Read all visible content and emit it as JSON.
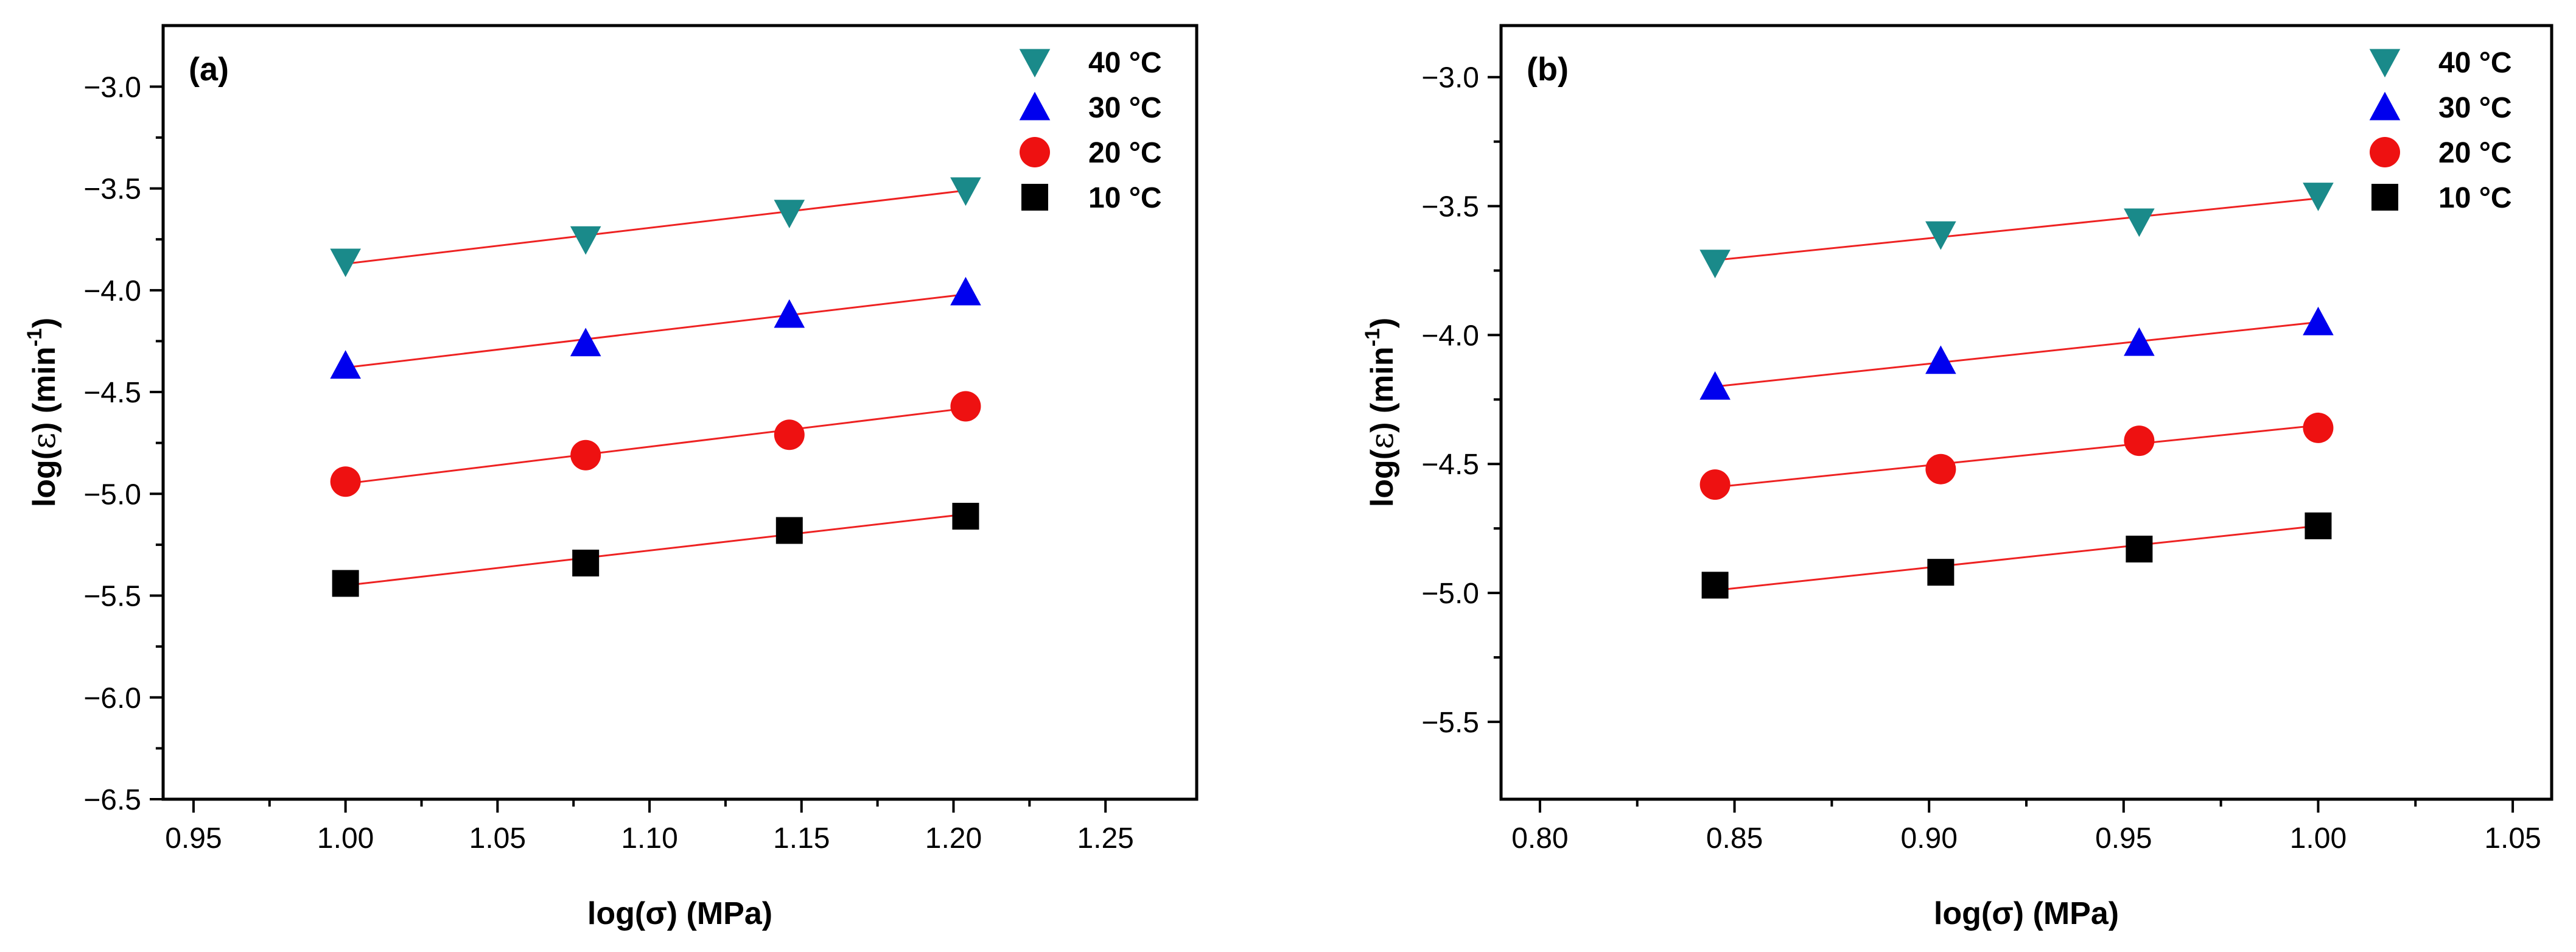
{
  "chart_data": [
    {
      "type": "scatter",
      "panel_label": "(a)",
      "xlabel": "log(σ) (MPa)",
      "ylabel_main": "log(",
      "ylabel_symbol": "ε",
      "ylabel_end": ")  (min",
      "ylabel_sup": "-1",
      "ylabel_close": ")",
      "xlim": [
        0.94,
        1.28
      ],
      "ylim": [
        -6.5,
        -2.7
      ],
      "xticks": [
        0.95,
        1.0,
        1.05,
        1.1,
        1.15,
        1.2,
        1.25
      ],
      "xtick_labels": [
        "0.95",
        "1.00",
        "1.05",
        "1.10",
        "1.15",
        "1.20",
        "1.25"
      ],
      "yticks": [
        -6.5,
        -6.0,
        -5.5,
        -5.0,
        -4.5,
        -4.0,
        -3.5,
        -3.0
      ],
      "ytick_labels": [
        "−6.5",
        "−6.0",
        "−5.5",
        "−5.0",
        "−4.5",
        "−4.0",
        "−3.5",
        "−3.0"
      ],
      "legend_position": "top-right",
      "series": [
        {
          "name": "40 °C",
          "marker": "triangle-down",
          "color": "#1a8a8a",
          "x": [
            1.0,
            1.079,
            1.146,
            1.204
          ],
          "y": [
            -3.86,
            -3.75,
            -3.62,
            -3.51
          ],
          "fit": {
            "x": [
              1.0,
              1.204
            ],
            "y": [
              -3.87,
              -3.51
            ]
          }
        },
        {
          "name": "30 °C",
          "marker": "triangle-up",
          "color": "#0000ee",
          "x": [
            1.0,
            1.079,
            1.146,
            1.204
          ],
          "y": [
            -4.37,
            -4.26,
            -4.12,
            -4.01
          ],
          "fit": {
            "x": [
              1.0,
              1.204
            ],
            "y": [
              -4.38,
              -4.02
            ]
          }
        },
        {
          "name": "20 °C",
          "marker": "circle",
          "color": "#ee1111",
          "x": [
            1.0,
            1.079,
            1.146,
            1.204
          ],
          "y": [
            -4.94,
            -4.81,
            -4.71,
            -4.57
          ],
          "fit": {
            "x": [
              1.0,
              1.204
            ],
            "y": [
              -4.95,
              -4.58
            ]
          }
        },
        {
          "name": "10 °C",
          "marker": "square",
          "color": "#000000",
          "x": [
            1.0,
            1.079,
            1.146,
            1.204
          ],
          "y": [
            -5.44,
            -5.34,
            -5.18,
            -5.11
          ],
          "fit": {
            "x": [
              1.0,
              1.204
            ],
            "y": [
              -5.45,
              -5.1
            ]
          }
        }
      ]
    },
    {
      "type": "scatter",
      "panel_label": "(b)",
      "xlabel": "log(σ) (MPa)",
      "ylabel_main": "log(",
      "ylabel_symbol": "ε",
      "ylabel_end": ")  (min",
      "ylabel_sup": "-1",
      "ylabel_close": ")",
      "xlim": [
        0.79,
        1.06
      ],
      "ylim": [
        -5.8,
        -2.8
      ],
      "xticks": [
        0.8,
        0.85,
        0.9,
        0.95,
        1.0,
        1.05
      ],
      "xtick_labels": [
        "0.80",
        "0.85",
        "0.90",
        "0.95",
        "1.00",
        "1.05"
      ],
      "yticks": [
        -5.5,
        -5.0,
        -4.5,
        -4.0,
        -3.5,
        -3.0
      ],
      "ytick_labels": [
        "−5.5",
        "−5.0",
        "−4.5",
        "−4.0",
        "−3.5",
        "−3.0"
      ],
      "legend_position": "top-right",
      "series": [
        {
          "name": "40 °C",
          "marker": "triangle-down",
          "color": "#1a8a8a",
          "x": [
            0.845,
            0.903,
            0.954,
            1.0
          ],
          "y": [
            -3.72,
            -3.61,
            -3.56,
            -3.46
          ],
          "fit": {
            "x": [
              0.845,
              1.0
            ],
            "y": [
              -3.71,
              -3.47
            ]
          }
        },
        {
          "name": "30 °C",
          "marker": "triangle-up",
          "color": "#0000ee",
          "x": [
            0.845,
            0.903,
            0.954,
            1.0
          ],
          "y": [
            -4.2,
            -4.1,
            -4.03,
            -3.95
          ],
          "fit": {
            "x": [
              0.845,
              1.0
            ],
            "y": [
              -4.2,
              -3.95
            ]
          }
        },
        {
          "name": "20 °C",
          "marker": "circle",
          "color": "#ee1111",
          "x": [
            0.845,
            0.903,
            0.954,
            1.0
          ],
          "y": [
            -4.58,
            -4.52,
            -4.41,
            -4.36
          ],
          "fit": {
            "x": [
              0.845,
              1.0
            ],
            "y": [
              -4.59,
              -4.35
            ]
          }
        },
        {
          "name": "10 °C",
          "marker": "square",
          "color": "#000000",
          "x": [
            0.845,
            0.903,
            0.954,
            1.0
          ],
          "y": [
            -4.97,
            -4.92,
            -4.83,
            -4.74
          ],
          "fit": {
            "x": [
              0.845,
              1.0
            ],
            "y": [
              -4.99,
              -4.74
            ]
          }
        }
      ]
    }
  ],
  "fit_line_color": "#ee2222"
}
